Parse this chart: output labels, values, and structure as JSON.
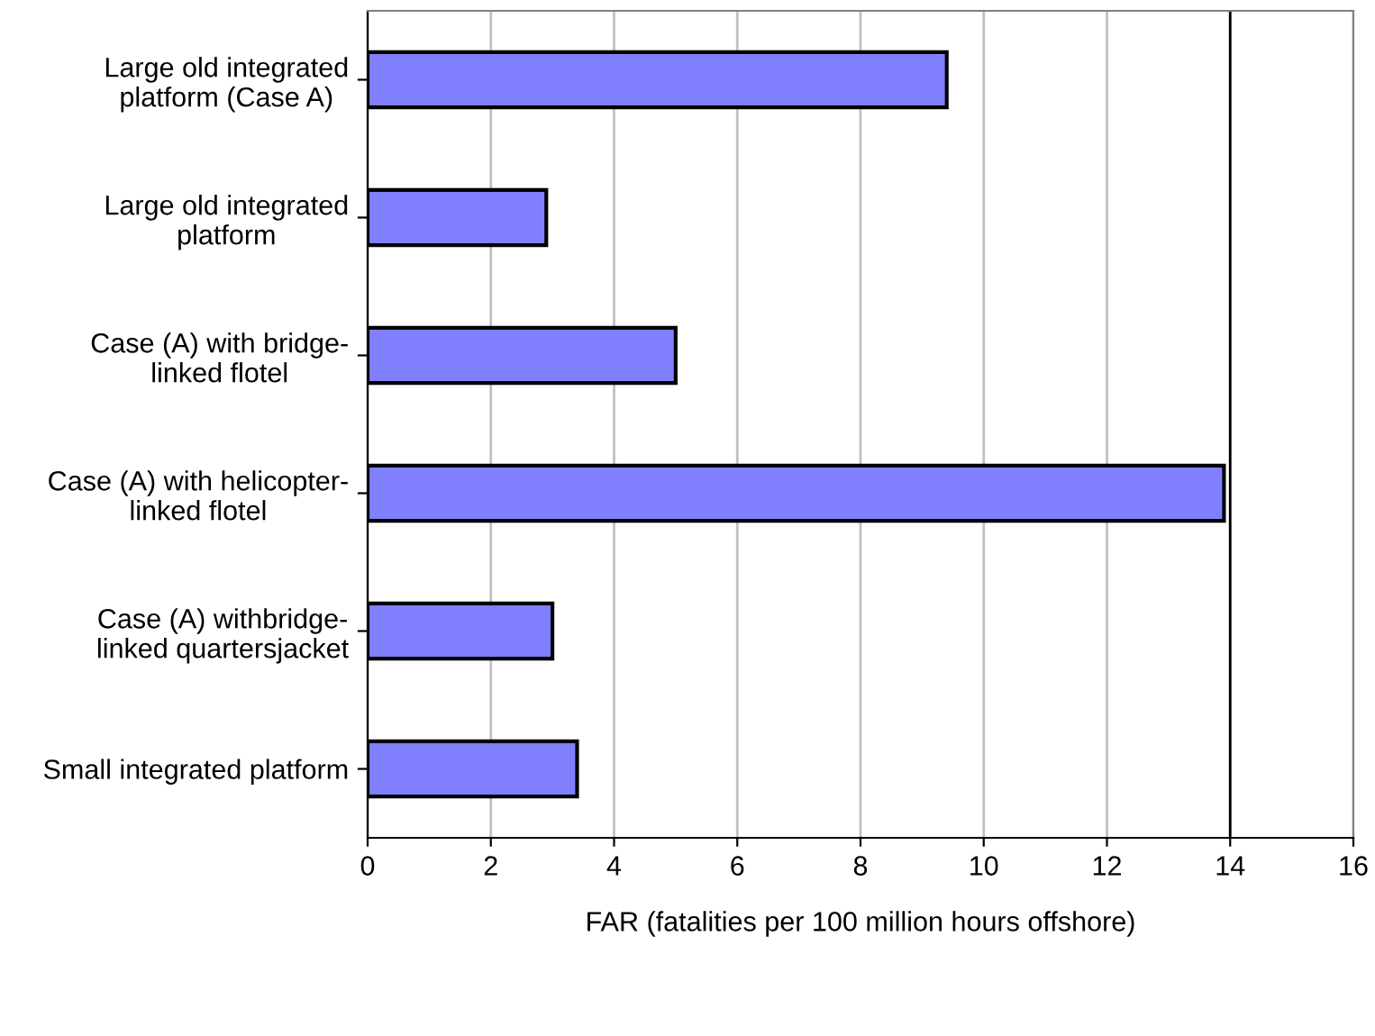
{
  "chart_data": {
    "type": "bar",
    "orientation": "horizontal",
    "categories": [
      "Large old integrated\nplatform (Case A)",
      "Large old integrated\nplatform",
      "Case (A) with bridge-\nlinked flotel",
      "Case (A) with helicopter-\nlinked flotel",
      "Case (A) withbridge-\nlinked quartersjacket",
      "Small integrated platform"
    ],
    "values": [
      9.4,
      2.9,
      5.0,
      13.9,
      3.0,
      3.4
    ],
    "color": "#8080ff",
    "xlabel": "FAR (fatalities per 100 million hours offshore)",
    "xlim": [
      0,
      16
    ],
    "xticks": [
      0,
      2,
      4,
      6,
      8,
      10,
      12,
      14,
      16
    ],
    "grid": "x",
    "legend": false,
    "ref_lines": [
      {
        "axis": "x",
        "value": 14,
        "color": "#000000"
      }
    ]
  }
}
